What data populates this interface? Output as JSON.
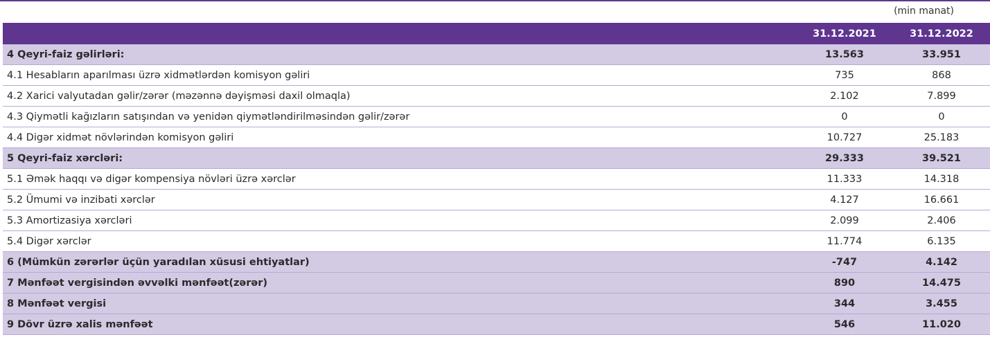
{
  "unit": "(min manat)",
  "columns": [
    "31.12.2021",
    "31.12.2022"
  ],
  "colors": {
    "header": "#5f3590",
    "highlight": "#d3cae4",
    "divider": "#b8a9d3"
  },
  "rows": [
    {
      "label": "4 Qeyri-faiz gəlirləri:",
      "v2021": "13.563",
      "v2022": "33.951",
      "bold": true
    },
    {
      "label": "4.1 Hesabların aparılması üzrə xidmətlərdən komisyon gəliri",
      "v2021": "735",
      "v2022": "868",
      "bold": false
    },
    {
      "label": "4.2 Xarici valyutadan gəlir/zərər (məzənnə dəyişməsi daxil olmaqla)",
      "v2021": "2.102",
      "v2022": "7.899",
      "bold": false
    },
    {
      "label": "4.3 Qiymətli kağızların satışından və yenidən qiymətləndirilməsindən gəlir/zərər",
      "v2021": "0",
      "v2022": "0",
      "bold": false
    },
    {
      "label": "4.4 Digər xidmət növlərindən komisyon gəliri",
      "v2021": "10.727",
      "v2022": "25.183",
      "bold": false
    },
    {
      "label": "5 Qeyri-faiz xərcləri:",
      "v2021": "29.333",
      "v2022": "39.521",
      "bold": true
    },
    {
      "label": "5.1 Əmək haqqı və digər kompensiya növləri üzrə xərclər",
      "v2021": "11.333",
      "v2022": "14.318",
      "bold": false
    },
    {
      "label": "5.2 Ümumi və inzibati xərclər",
      "v2021": "4.127",
      "v2022": "16.661",
      "bold": false
    },
    {
      "label": "5.3 Amortizasiya xərcləri",
      "v2021": "2.099",
      "v2022": "2.406",
      "bold": false
    },
    {
      "label": "5.4 Digər xərclər",
      "v2021": "11.774",
      "v2022": "6.135",
      "bold": false
    },
    {
      "label": "6 (Mümkün zərərlər üçün yaradılan xüsusi ehtiyatlar)",
      "v2021": "-747",
      "v2022": "4.142",
      "bold": true
    },
    {
      "label": "7 Mənfəət vergisindən əvvəlki mənfəət(zərər)",
      "v2021": "890",
      "v2022": "14.475",
      "bold": true
    },
    {
      "label": "8 Mənfəət vergisi",
      "v2021": "344",
      "v2022": "3.455",
      "bold": true
    },
    {
      "label": "9 Dövr üzrə xalis mənfəət",
      "v2021": "546",
      "v2022": "11.020",
      "bold": true
    }
  ]
}
